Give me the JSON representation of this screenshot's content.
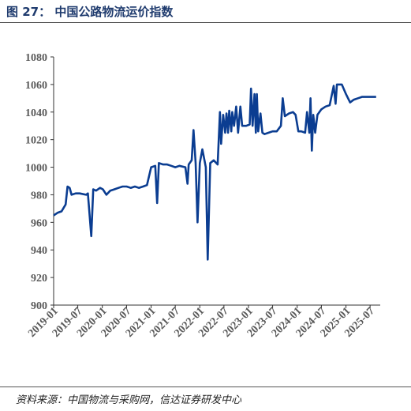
{
  "figure": {
    "title": "图 27： 中国公路物流运价指数",
    "source": "资料来源：中国物流与采购网，信达证券研发中心"
  },
  "colors": {
    "line": "#0b3d91",
    "axis": "#333333",
    "text": "#595959",
    "title": "#1f3b6e"
  },
  "chart_data": {
    "type": "line",
    "title": "",
    "xlabel": "",
    "ylabel": "",
    "ylim": [
      900,
      1080
    ],
    "yticks": [
      900,
      920,
      940,
      960,
      980,
      1000,
      1020,
      1040,
      1060,
      1080
    ],
    "xlim": [
      "2019-01-01",
      "2025-09-15"
    ],
    "xticks": [
      "2019-01",
      "2019-07",
      "2020-01",
      "2020-07",
      "2021-01",
      "2021-07",
      "2022-01",
      "2022-07",
      "2023-01",
      "2023-07",
      "2024-01",
      "2024-07",
      "2025-01",
      "2025-07"
    ],
    "grid": false,
    "legend": "none",
    "series": [
      {
        "name": "",
        "points": [
          [
            "2019-01-01",
            965
          ],
          [
            "2019-02-01",
            967
          ],
          [
            "2019-03-01",
            968
          ],
          [
            "2019-04-01",
            973
          ],
          [
            "2019-04-15",
            986
          ],
          [
            "2019-05-01",
            985
          ],
          [
            "2019-05-15",
            980
          ],
          [
            "2019-06-15",
            981
          ],
          [
            "2019-07-15",
            981
          ],
          [
            "2019-09-01",
            980
          ],
          [
            "2019-09-15",
            981
          ],
          [
            "2019-10-10",
            950
          ],
          [
            "2019-10-25",
            984
          ],
          [
            "2019-11-15",
            983
          ],
          [
            "2019-12-15",
            985
          ],
          [
            "2020-01-05",
            984
          ],
          [
            "2020-02-01",
            980
          ],
          [
            "2020-03-01",
            983
          ],
          [
            "2020-04-01",
            984
          ],
          [
            "2020-05-01",
            985
          ],
          [
            "2020-06-01",
            986
          ],
          [
            "2020-07-01",
            986
          ],
          [
            "2020-08-01",
            985
          ],
          [
            "2020-09-01",
            986
          ],
          [
            "2020-10-01",
            985
          ],
          [
            "2020-11-01",
            986
          ],
          [
            "2020-12-01",
            987
          ],
          [
            "2021-01-01",
            1000
          ],
          [
            "2021-02-01",
            1001
          ],
          [
            "2021-02-15",
            974
          ],
          [
            "2021-02-28",
            1003
          ],
          [
            "2021-04-01",
            1002
          ],
          [
            "2021-05-01",
            1002
          ],
          [
            "2021-06-01",
            1001
          ],
          [
            "2021-07-01",
            1000
          ],
          [
            "2021-08-01",
            1001
          ],
          [
            "2021-09-15",
            1000
          ],
          [
            "2021-10-01",
            988
          ],
          [
            "2021-10-10",
            1002
          ],
          [
            "2021-11-01",
            1005
          ],
          [
            "2021-11-15",
            1027
          ],
          [
            "2021-12-01",
            1003
          ],
          [
            "2021-12-15",
            960
          ],
          [
            "2022-01-01",
            1003
          ],
          [
            "2022-01-20",
            1013
          ],
          [
            "2022-02-15",
            1000
          ],
          [
            "2022-03-01",
            933
          ],
          [
            "2022-03-20",
            1003
          ],
          [
            "2022-04-15",
            1005
          ],
          [
            "2022-05-15",
            1002
          ],
          [
            "2022-06-01",
            1040
          ],
          [
            "2022-06-10",
            1017
          ],
          [
            "2022-06-25",
            1038
          ],
          [
            "2022-07-10",
            1025
          ],
          [
            "2022-07-20",
            1039
          ],
          [
            "2022-08-01",
            1025
          ],
          [
            "2022-08-10",
            1041
          ],
          [
            "2022-08-25",
            1026
          ],
          [
            "2022-09-01",
            1040
          ],
          [
            "2022-09-15",
            1030
          ],
          [
            "2022-10-01",
            1044
          ],
          [
            "2022-10-15",
            1025
          ],
          [
            "2022-11-01",
            1044
          ],
          [
            "2022-11-15",
            1030
          ],
          [
            "2022-12-15",
            1030
          ],
          [
            "2023-01-10",
            1031
          ],
          [
            "2023-01-20",
            1057
          ],
          [
            "2023-02-01",
            1030
          ],
          [
            "2023-02-15",
            1053
          ],
          [
            "2023-02-25",
            1025
          ],
          [
            "2023-03-05",
            1053
          ],
          [
            "2023-03-15",
            1026
          ],
          [
            "2023-04-01",
            1039
          ],
          [
            "2023-04-15",
            1025
          ],
          [
            "2023-05-01",
            1024
          ],
          [
            "2023-06-01",
            1025
          ],
          [
            "2023-07-01",
            1026
          ],
          [
            "2023-08-01",
            1026
          ],
          [
            "2023-09-01",
            1030
          ],
          [
            "2023-09-15",
            1050
          ],
          [
            "2023-10-01",
            1037
          ],
          [
            "2023-11-01",
            1039
          ],
          [
            "2023-12-01",
            1040
          ],
          [
            "2023-12-20",
            1038
          ],
          [
            "2024-01-10",
            1026
          ],
          [
            "2024-02-01",
            1026
          ],
          [
            "2024-03-01",
            1025
          ],
          [
            "2024-03-15",
            1040
          ],
          [
            "2024-04-01",
            1025
          ],
          [
            "2024-04-10",
            1050
          ],
          [
            "2024-04-20",
            1012
          ],
          [
            "2024-05-01",
            1038
          ],
          [
            "2024-05-15",
            1025
          ],
          [
            "2024-06-01",
            1038
          ],
          [
            "2024-07-01",
            1042
          ],
          [
            "2024-08-01",
            1044
          ],
          [
            "2024-09-01",
            1045
          ],
          [
            "2024-10-01",
            1059
          ],
          [
            "2024-10-15",
            1046
          ],
          [
            "2024-10-25",
            1060
          ],
          [
            "2024-12-01",
            1060
          ],
          [
            "2025-01-01",
            1053
          ],
          [
            "2025-02-01",
            1047
          ],
          [
            "2025-03-01",
            1049
          ],
          [
            "2025-04-01",
            1050
          ],
          [
            "2025-05-01",
            1051
          ],
          [
            "2025-06-01",
            1051
          ],
          [
            "2025-07-01",
            1051
          ],
          [
            "2025-08-15",
            1051
          ]
        ]
      }
    ]
  }
}
